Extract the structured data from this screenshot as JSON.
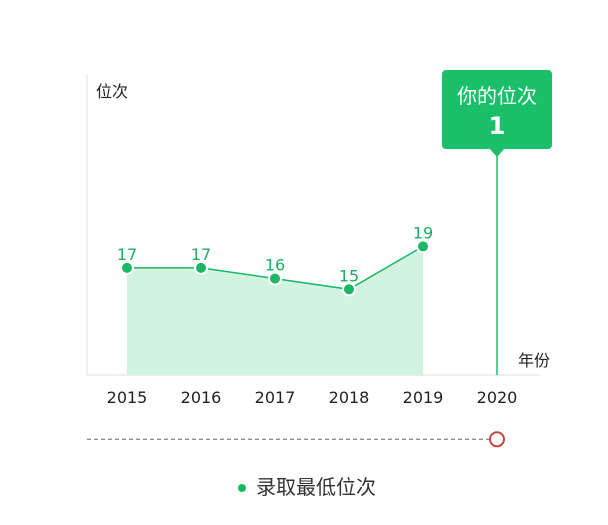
{
  "chart_data": {
    "type": "area",
    "ylabel": "位次",
    "xlabel": "年份",
    "x": [
      "2015",
      "2016",
      "2017",
      "2018",
      "2019",
      "2020"
    ],
    "series": [
      {
        "name": "录取最低位次",
        "x": [
          "2015",
          "2016",
          "2017",
          "2018",
          "2019"
        ],
        "values": [
          17,
          17,
          16,
          15,
          19
        ]
      }
    ],
    "your_rank": {
      "label": "你的位次",
      "value": 1,
      "year": "2020"
    },
    "ylim": [
      7,
      35
    ],
    "grid": false,
    "legend": "bottom-center",
    "colors": {
      "line": "#1ab765",
      "fill": "#d3f3e1",
      "label": "#1dae5f",
      "callout": "#1abf6a",
      "marker": "#c8463e",
      "reference": "#666666"
    }
  }
}
